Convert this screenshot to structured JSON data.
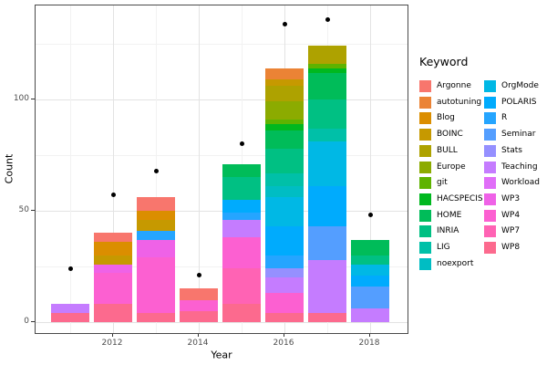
{
  "chart_data": {
    "type": "bar",
    "subtype": "stacked-with-points",
    "title": "",
    "xlabel": "Year",
    "ylabel": "Count",
    "legend_title": "Keyword",
    "legend_position": "right",
    "legend_col_size": 12,
    "grid": true,
    "ylim": [
      0,
      142
    ],
    "years": [
      2011,
      2012,
      2013,
      2014,
      2015,
      2016,
      2017,
      2018
    ],
    "x_ticks": [
      {
        "label": "2012",
        "value": 2012
      },
      {
        "label": "2014",
        "value": 2014
      },
      {
        "label": "2016",
        "value": 2016
      },
      {
        "label": "2018",
        "value": 2018
      }
    ],
    "y_ticks": [
      {
        "label": "0",
        "value": 0
      },
      {
        "label": "50",
        "value": 50
      },
      {
        "label": "100",
        "value": 100
      }
    ],
    "y_minor": [
      25,
      75,
      125
    ],
    "keywords": [
      {
        "name": "Argonne",
        "color": "#F8766D"
      },
      {
        "name": "autotuning",
        "color": "#EB8335"
      },
      {
        "name": "Blog",
        "color": "#DB8E00"
      },
      {
        "name": "BOINC",
        "color": "#C69900"
      },
      {
        "name": "BULL",
        "color": "#AEA200"
      },
      {
        "name": "Europe",
        "color": "#8CAB00"
      },
      {
        "name": "git",
        "color": "#5EB300"
      },
      {
        "name": "HACSPECIS",
        "color": "#00B81F"
      },
      {
        "name": "HOME",
        "color": "#00BC59"
      },
      {
        "name": "INRIA",
        "color": "#00C083"
      },
      {
        "name": "LIG",
        "color": "#00C0A8"
      },
      {
        "name": "noexport",
        "color": "#00BDC3"
      },
      {
        "name": "OrgMode",
        "color": "#00B8E5"
      },
      {
        "name": "POLARIS",
        "color": "#00ABFD"
      },
      {
        "name": "R",
        "color": "#25A5FF"
      },
      {
        "name": "Seminar",
        "color": "#549EFF"
      },
      {
        "name": "Stats",
        "color": "#9590FF"
      },
      {
        "name": "Teaching",
        "color": "#C57CFF"
      },
      {
        "name": "Workload",
        "color": "#E06EF8"
      },
      {
        "name": "WP3",
        "color": "#EF62E7"
      },
      {
        "name": "WP4",
        "color": "#FC60D1"
      },
      {
        "name": "WP7",
        "color": "#FF63B4"
      },
      {
        "name": "WP8",
        "color": "#FC6A8E"
      }
    ],
    "bars": [
      {
        "year": 2011,
        "total": 8,
        "segments": [
          {
            "keyword": "WP8",
            "value": 4
          },
          {
            "keyword": "Teaching",
            "value": 4
          }
        ]
      },
      {
        "year": 2012,
        "total": 40,
        "segments": [
          {
            "keyword": "WP8",
            "value": 8
          },
          {
            "keyword": "WP4",
            "value": 14
          },
          {
            "keyword": "WP3",
            "value": 4
          },
          {
            "keyword": "BOINC",
            "value": 4
          },
          {
            "keyword": "Blog",
            "value": 6
          },
          {
            "keyword": "Argonne",
            "value": 4
          }
        ]
      },
      {
        "year": 2013,
        "total": 56,
        "segments": [
          {
            "keyword": "WP8",
            "value": 4
          },
          {
            "keyword": "WP4",
            "value": 25
          },
          {
            "keyword": "WP3",
            "value": 8
          },
          {
            "keyword": "R",
            "value": 4
          },
          {
            "keyword": "BOINC",
            "value": 5
          },
          {
            "keyword": "Blog",
            "value": 4
          },
          {
            "keyword": "Argonne",
            "value": 6
          }
        ]
      },
      {
        "year": 2014,
        "total": 15,
        "segments": [
          {
            "keyword": "WP8",
            "value": 5
          },
          {
            "keyword": "WP4",
            "value": 5
          },
          {
            "keyword": "Argonne",
            "value": 5
          }
        ]
      },
      {
        "year": 2015,
        "total": 71,
        "segments": [
          {
            "keyword": "WP8",
            "value": 8
          },
          {
            "keyword": "WP7",
            "value": 16
          },
          {
            "keyword": "WP4",
            "value": 14
          },
          {
            "keyword": "Teaching",
            "value": 8
          },
          {
            "keyword": "R",
            "value": 3
          },
          {
            "keyword": "POLARIS",
            "value": 6
          },
          {
            "keyword": "INRIA",
            "value": 10
          },
          {
            "keyword": "HOME",
            "value": 6
          }
        ]
      },
      {
        "year": 2016,
        "total": 114,
        "segments": [
          {
            "keyword": "WP8",
            "value": 4
          },
          {
            "keyword": "WP4",
            "value": 9
          },
          {
            "keyword": "Teaching",
            "value": 7
          },
          {
            "keyword": "Stats",
            "value": 4
          },
          {
            "keyword": "R",
            "value": 6
          },
          {
            "keyword": "POLARIS",
            "value": 13
          },
          {
            "keyword": "OrgMode",
            "value": 13
          },
          {
            "keyword": "noexport",
            "value": 5
          },
          {
            "keyword": "LIG",
            "value": 6
          },
          {
            "keyword": "INRIA",
            "value": 11
          },
          {
            "keyword": "HOME",
            "value": 8
          },
          {
            "keyword": "HACSPECIS",
            "value": 3
          },
          {
            "keyword": "git",
            "value": 2
          },
          {
            "keyword": "Europe",
            "value": 8
          },
          {
            "keyword": "BULL",
            "value": 7
          },
          {
            "keyword": "BOINC",
            "value": 3
          },
          {
            "keyword": "autotuning",
            "value": 5
          }
        ]
      },
      {
        "year": 2017,
        "total": 124,
        "segments": [
          {
            "keyword": "WP8",
            "value": 4
          },
          {
            "keyword": "Teaching",
            "value": 24
          },
          {
            "keyword": "Seminar",
            "value": 15
          },
          {
            "keyword": "POLARIS",
            "value": 18
          },
          {
            "keyword": "OrgMode",
            "value": 20
          },
          {
            "keyword": "LIG",
            "value": 6
          },
          {
            "keyword": "INRIA",
            "value": 13
          },
          {
            "keyword": "HOME",
            "value": 12
          },
          {
            "keyword": "HACSPECIS",
            "value": 2
          },
          {
            "keyword": "git",
            "value": 2
          },
          {
            "keyword": "BULL",
            "value": 8
          }
        ]
      },
      {
        "year": 2018,
        "total": 37,
        "segments": [
          {
            "keyword": "Teaching",
            "value": 6
          },
          {
            "keyword": "Seminar",
            "value": 10
          },
          {
            "keyword": "POLARIS",
            "value": 5
          },
          {
            "keyword": "OrgMode",
            "value": 5
          },
          {
            "keyword": "INRIA",
            "value": 4
          },
          {
            "keyword": "HOME",
            "value": 7
          }
        ]
      }
    ],
    "points": [
      {
        "year": 2011,
        "value": 24
      },
      {
        "year": 2012,
        "value": 57
      },
      {
        "year": 2013,
        "value": 68
      },
      {
        "year": 2014,
        "value": 21
      },
      {
        "year": 2015,
        "value": 80
      },
      {
        "year": 2016,
        "value": 134
      },
      {
        "year": 2017,
        "value": 136
      },
      {
        "year": 2018,
        "value": 48
      }
    ]
  }
}
